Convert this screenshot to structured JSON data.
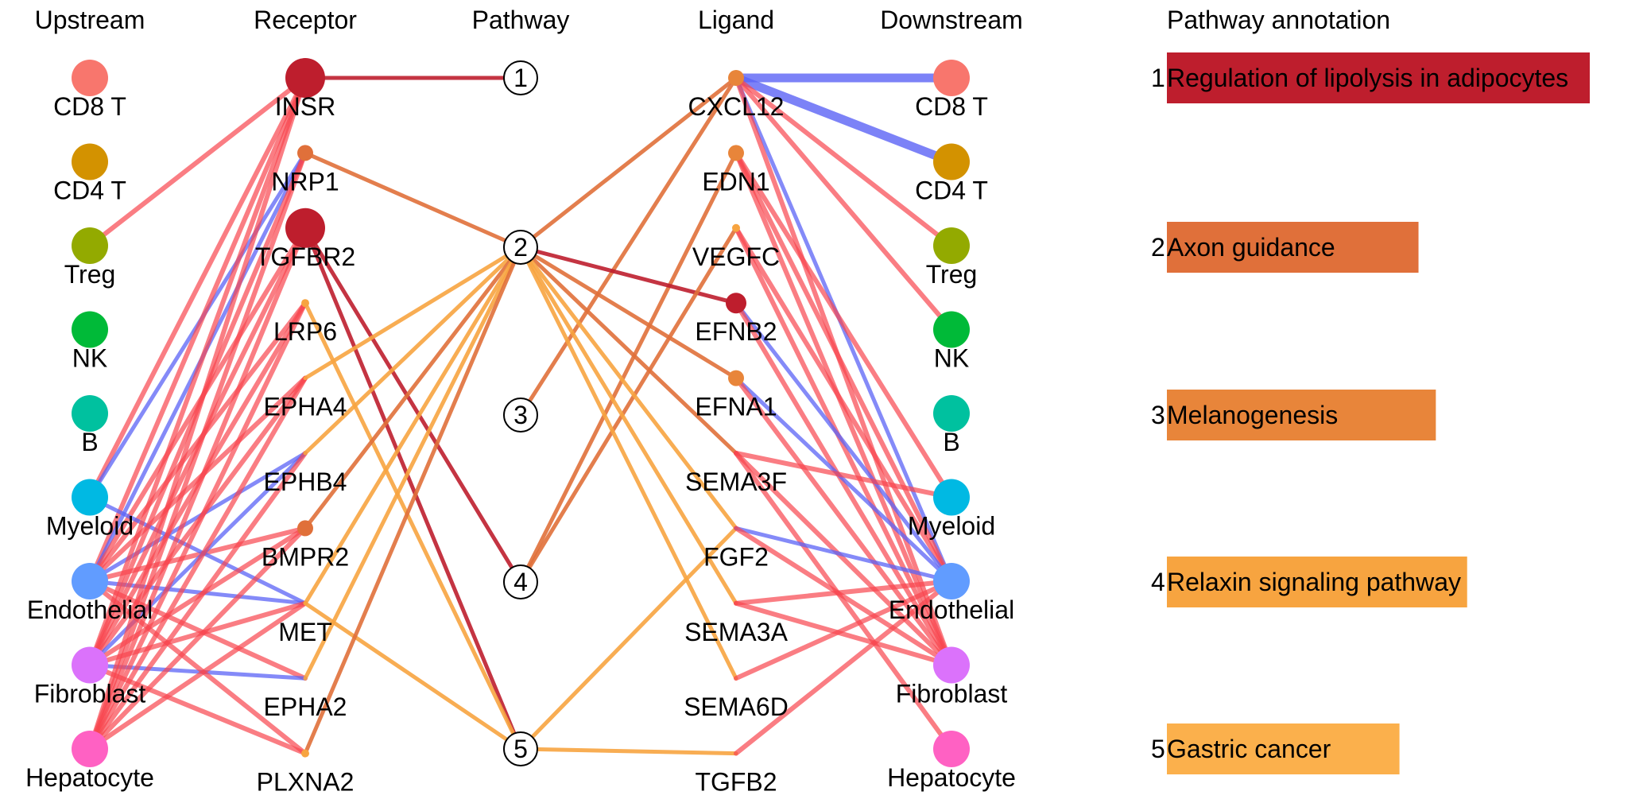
{
  "headers": {
    "upstream": "Upstream",
    "receptor": "Receptor",
    "pathway": "Pathway",
    "ligand": "Ligand",
    "downstream": "Downstream",
    "annotation": "Pathway annotation"
  },
  "celltypes": [
    {
      "name": "CD8 T",
      "color": "#F8766D"
    },
    {
      "name": "CD4 T",
      "color": "#D39200"
    },
    {
      "name": "Treg",
      "color": "#93AA00"
    },
    {
      "name": "NK",
      "color": "#00BA38"
    },
    {
      "name": "B",
      "color": "#00C19F"
    },
    {
      "name": "Myeloid",
      "color": "#00B9E3"
    },
    {
      "name": "Endothelial",
      "color": "#619CFF"
    },
    {
      "name": "Fibroblast",
      "color": "#DB72FB"
    },
    {
      "name": "Hepatocyte",
      "color": "#FF61C3"
    }
  ],
  "receptors": [
    {
      "name": "INSR",
      "color": "#BE1E2D",
      "size": "large"
    },
    {
      "name": "NRP1",
      "color": "#E0703A",
      "size": "small"
    },
    {
      "name": "TGFBR2",
      "color": "#BE1E2D",
      "size": "large"
    },
    {
      "name": "LRP6",
      "color": "#F7A440",
      "size": "tiny"
    },
    {
      "name": "EPHA4",
      "color": "#F7A440",
      "size": "none"
    },
    {
      "name": "EPHB4",
      "color": "#F7A440",
      "size": "none"
    },
    {
      "name": "BMPR2",
      "color": "#E0703A",
      "size": "small"
    },
    {
      "name": "MET",
      "color": "#F7A440",
      "size": "none"
    },
    {
      "name": "EPHA2",
      "color": "#F7A440",
      "size": "none"
    },
    {
      "name": "PLXNA2",
      "color": "#F7A440",
      "size": "tiny"
    }
  ],
  "pathways": [
    "1",
    "2",
    "3",
    "4",
    "5"
  ],
  "ligands": [
    {
      "name": "CXCL12",
      "color": "#E8853A",
      "size": "small"
    },
    {
      "name": "EDN1",
      "color": "#E8853A",
      "size": "small"
    },
    {
      "name": "VEGFC",
      "color": "#F7A440",
      "size": "tiny"
    },
    {
      "name": "EFNB2",
      "color": "#BE1E2D",
      "size": "medium"
    },
    {
      "name": "EFNA1",
      "color": "#E8853A",
      "size": "small"
    },
    {
      "name": "SEMA3F",
      "color": "#F7A440",
      "size": "none"
    },
    {
      "name": "FGF2",
      "color": "#F7A440",
      "size": "none"
    },
    {
      "name": "SEMA3A",
      "color": "#F7A440",
      "size": "none"
    },
    {
      "name": "SEMA6D",
      "color": "#F7A440",
      "size": "none"
    },
    {
      "name": "TGFB2",
      "color": "#F7A440",
      "size": "none"
    }
  ],
  "annotations": [
    {
      "id": "1",
      "label": "Regulation of lipolysis in adipocytes",
      "color": "#BE1E2D",
      "value": 1.0
    },
    {
      "id": "2",
      "label": "Axon guidance",
      "color": "#E0703A",
      "value": 0.595
    },
    {
      "id": "3",
      "label": "Melanogenesis",
      "color": "#E8853A",
      "value": 0.636
    },
    {
      "id": "4",
      "label": "Relaxin signaling pathway",
      "color": "#F7A440",
      "value": 0.71
    },
    {
      "id": "5",
      "label": "Gastric cancer",
      "color": "#FBB04C",
      "value": 0.55
    }
  ],
  "colors": {
    "pos_edge": "#F8464F",
    "neg_edge": "#5B63F5",
    "dark_red": "#BE1E2D",
    "orange": "#E0703A",
    "light_orange": "#F7A440"
  },
  "edges": {
    "up_rec": [
      [
        "Treg",
        "INSR",
        "pos"
      ],
      [
        "Myeloid",
        "INSR",
        "pos"
      ],
      [
        "Myeloid",
        "NRP1",
        "neg"
      ],
      [
        "Endothelial",
        "INSR",
        "pos"
      ],
      [
        "Endothelial",
        "NRP1",
        "neg"
      ],
      [
        "Endothelial",
        "TGFBR2",
        "pos"
      ],
      [
        "Endothelial",
        "LRP6",
        "pos"
      ],
      [
        "Endothelial",
        "EPHA4",
        "pos"
      ],
      [
        "Endothelial",
        "EPHB4",
        "neg"
      ],
      [
        "Endothelial",
        "BMPR2",
        "pos"
      ],
      [
        "Endothelial",
        "MET",
        "neg"
      ],
      [
        "Endothelial",
        "EPHA2",
        "pos"
      ],
      [
        "Myeloid",
        "MET",
        "neg"
      ],
      [
        "Fibroblast",
        "INSR",
        "pos"
      ],
      [
        "Fibroblast",
        "NRP1",
        "pos"
      ],
      [
        "Fibroblast",
        "TGFBR2",
        "pos"
      ],
      [
        "Fibroblast",
        "LRP6",
        "pos"
      ],
      [
        "Fibroblast",
        "EPHA4",
        "pos"
      ],
      [
        "Fibroblast",
        "EPHB4",
        "neg"
      ],
      [
        "Fibroblast",
        "BMPR2",
        "pos"
      ],
      [
        "Fibroblast",
        "MET",
        "pos"
      ],
      [
        "Fibroblast",
        "EPHA2",
        "neg"
      ],
      [
        "Fibroblast",
        "PLXNA2",
        "pos"
      ],
      [
        "Hepatocyte",
        "INSR",
        "pos"
      ],
      [
        "Hepatocyte",
        "NRP1",
        "pos"
      ],
      [
        "Hepatocyte",
        "TGFBR2",
        "pos"
      ],
      [
        "Hepatocyte",
        "LRP6",
        "pos"
      ],
      [
        "Hepatocyte",
        "EPHA4",
        "pos"
      ],
      [
        "Hepatocyte",
        "EPHB4",
        "pos"
      ],
      [
        "Hepatocyte",
        "BMPR2",
        "pos"
      ],
      [
        "Hepatocyte",
        "MET",
        "pos"
      ],
      [
        "Endothelial",
        "PLXNA2",
        "pos"
      ]
    ],
    "rec_path": [
      [
        "INSR",
        "1",
        "dark_red"
      ],
      [
        "NRP1",
        "2",
        "orange"
      ],
      [
        "TGFBR2",
        "4",
        "dark_red"
      ],
      [
        "TGFBR2",
        "5",
        "dark_red"
      ],
      [
        "LRP6",
        "5",
        "light_orange"
      ],
      [
        "EPHA4",
        "2",
        "light_orange"
      ],
      [
        "EPHB4",
        "2",
        "light_orange"
      ],
      [
        "BMPR2",
        "2",
        "orange"
      ],
      [
        "MET",
        "2",
        "light_orange"
      ],
      [
        "MET",
        "5",
        "light_orange"
      ],
      [
        "EPHA2",
        "2",
        "light_orange"
      ],
      [
        "PLXNA2",
        "2",
        "orange"
      ]
    ],
    "path_lig": [
      [
        "2",
        "CXCL12",
        "orange"
      ],
      [
        "3",
        "CXCL12",
        "orange"
      ],
      [
        "4",
        "EDN1",
        "orange"
      ],
      [
        "2",
        "EFNB2",
        "dark_red"
      ],
      [
        "4",
        "VEGFC",
        "orange"
      ],
      [
        "2",
        "EFNA1",
        "orange"
      ],
      [
        "2",
        "SEMA3F",
        "orange"
      ],
      [
        "2",
        "FGF2",
        "light_orange"
      ],
      [
        "2",
        "SEMA3A",
        "light_orange"
      ],
      [
        "2",
        "SEMA6D",
        "light_orange"
      ],
      [
        "5",
        "FGF2",
        "light_orange"
      ],
      [
        "5",
        "TGFB2",
        "light_orange"
      ]
    ],
    "lig_down": [
      [
        "CXCL12",
        "CD8 T",
        "neg_thick"
      ],
      [
        "CXCL12",
        "CD4 T",
        "neg_thick"
      ],
      [
        "CXCL12",
        "Treg",
        "pos"
      ],
      [
        "CXCL12",
        "NK",
        "pos"
      ],
      [
        "CXCL12",
        "Endothelial",
        "neg"
      ],
      [
        "CXCL12",
        "Fibroblast",
        "pos"
      ],
      [
        "EDN1",
        "Endothelial",
        "pos"
      ],
      [
        "EDN1",
        "Fibroblast",
        "pos"
      ],
      [
        "EDN1",
        "Myeloid",
        "pos"
      ],
      [
        "VEGFC",
        "Endothelial",
        "pos"
      ],
      [
        "VEGFC",
        "Fibroblast",
        "pos"
      ],
      [
        "EFNB2",
        "Endothelial",
        "neg"
      ],
      [
        "EFNB2",
        "Fibroblast",
        "pos"
      ],
      [
        "EFNA1",
        "Endothelial",
        "neg"
      ],
      [
        "EFNA1",
        "Fibroblast",
        "pos"
      ],
      [
        "SEMA3F",
        "Myeloid",
        "pos"
      ],
      [
        "SEMA3F",
        "Fibroblast",
        "pos"
      ],
      [
        "SEMA3F",
        "Hepatocyte",
        "pos"
      ],
      [
        "FGF2",
        "Endothelial",
        "neg"
      ],
      [
        "FGF2",
        "Fibroblast",
        "pos"
      ],
      [
        "SEMA3A",
        "Endothelial",
        "pos"
      ],
      [
        "SEMA3A",
        "Fibroblast",
        "pos"
      ],
      [
        "SEMA6D",
        "Endothelial",
        "pos"
      ],
      [
        "TGFB2",
        "Endothelial",
        "pos"
      ]
    ]
  }
}
